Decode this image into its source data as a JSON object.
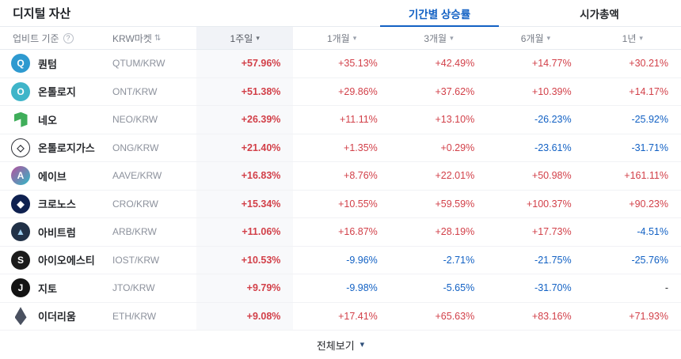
{
  "header": {
    "title": "디지털 자산",
    "tabs": [
      {
        "label": "기간별 상승률",
        "active": true
      },
      {
        "label": "시가총액",
        "active": false
      }
    ]
  },
  "table": {
    "basis_label": "업비트 기준",
    "help_icon": "?",
    "market_label": "KRW마켓",
    "sort_icon": "⇅",
    "dropdown_icon": "▾",
    "periods": [
      "1주일",
      "1개월",
      "3개월",
      "6개월",
      "1년"
    ],
    "rows": [
      {
        "name": "퀀텀",
        "pair": "QTUM/KRW",
        "icon": {
          "name": "qtum-icon",
          "type": "circle",
          "bg": "#2e9ad0",
          "fg": "#ffffff",
          "glyph": "Q"
        },
        "values": [
          "+57.96%",
          "+35.13%",
          "+42.49%",
          "+14.77%",
          "+30.21%"
        ]
      },
      {
        "name": "온톨로지",
        "pair": "ONT/KRW",
        "icon": {
          "name": "ontology-icon",
          "type": "circle",
          "bg": "#3fb5c9",
          "fg": "#ffffff",
          "glyph": "O"
        },
        "values": [
          "+51.38%",
          "+29.86%",
          "+37.62%",
          "+10.39%",
          "+14.17%"
        ]
      },
      {
        "name": "네오",
        "pair": "NEO/KRW",
        "icon": {
          "name": "neo-icon",
          "type": "neo",
          "bg": "#3fae5a",
          "fg": "#ffffff",
          "glyph": ""
        },
        "values": [
          "+26.39%",
          "+11.11%",
          "+13.10%",
          "-26.23%",
          "-25.92%"
        ]
      },
      {
        "name": "온톨로지가스",
        "pair": "ONG/KRW",
        "icon": {
          "name": "ontology-gas-icon",
          "type": "outline",
          "bg": "#ffffff",
          "fg": "#2f3138",
          "border": "#2f3138",
          "glyph": "◇"
        },
        "values": [
          "+21.40%",
          "+1.35%",
          "+0.29%",
          "-23.61%",
          "-31.71%"
        ]
      },
      {
        "name": "에이브",
        "pair": "AAVE/KRW",
        "icon": {
          "name": "aave-icon",
          "type": "gradient",
          "gradient": [
            "#b6509e",
            "#2ebac6"
          ],
          "fg": "#ffffff",
          "glyph": "A"
        },
        "values": [
          "+16.83%",
          "+8.76%",
          "+22.01%",
          "+50.98%",
          "+161.11%"
        ]
      },
      {
        "name": "크로노스",
        "pair": "CRO/KRW",
        "icon": {
          "name": "cronos-icon",
          "type": "circle",
          "bg": "#0f2150",
          "fg": "#ffffff",
          "glyph": "◆"
        },
        "values": [
          "+15.34%",
          "+10.55%",
          "+59.59%",
          "+100.37%",
          "+90.23%"
        ]
      },
      {
        "name": "아비트럼",
        "pair": "ARB/KRW",
        "icon": {
          "name": "arbitrum-icon",
          "type": "circle",
          "bg": "#213147",
          "fg": "#9dcced",
          "glyph": "▲"
        },
        "values": [
          "+11.06%",
          "+16.87%",
          "+28.19%",
          "+17.73%",
          "-4.51%"
        ]
      },
      {
        "name": "아이오에스티",
        "pair": "IOST/KRW",
        "icon": {
          "name": "iost-icon",
          "type": "circle",
          "bg": "#1b1b1b",
          "fg": "#ffffff",
          "glyph": "S"
        },
        "values": [
          "+10.53%",
          "-9.96%",
          "-2.71%",
          "-21.75%",
          "-25.76%"
        ]
      },
      {
        "name": "지토",
        "pair": "JTO/KRW",
        "icon": {
          "name": "jito-icon",
          "type": "circle",
          "bg": "#131313",
          "fg": "#ffffff",
          "glyph": "J"
        },
        "values": [
          "+9.79%",
          "-9.98%",
          "-5.65%",
          "-31.70%",
          "-"
        ]
      },
      {
        "name": "이더리움",
        "pair": "ETH/KRW",
        "icon": {
          "name": "ethereum-icon",
          "type": "eth",
          "bg": "#4a5160",
          "fg": "#ffffff",
          "glyph": ""
        },
        "values": [
          "+9.08%",
          "+17.41%",
          "+65.63%",
          "+83.16%",
          "+71.93%"
        ]
      }
    ]
  },
  "footer": {
    "view_all": "전체보기"
  },
  "colors": {
    "up": "#d24049",
    "down": "#1261c4",
    "accent": "#1261c4"
  }
}
